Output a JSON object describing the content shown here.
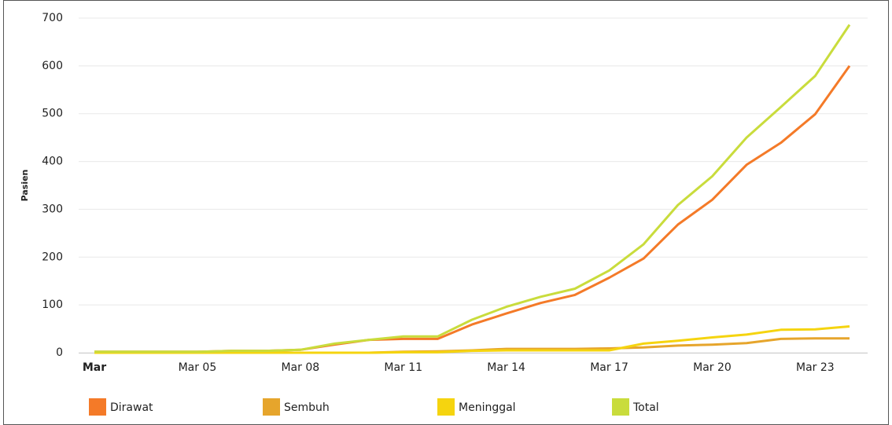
{
  "chart_data": {
    "type": "line",
    "y_label": "Pasien",
    "categories": [
      "Mar",
      null,
      null,
      "Mar 05",
      null,
      null,
      "Mar 08",
      null,
      null,
      "Mar 11",
      null,
      null,
      "Mar 14",
      null,
      null,
      "Mar 17",
      null,
      null,
      "Mar 20",
      null,
      null,
      "Mar 23",
      null
    ],
    "series": [
      {
        "name": "Dirawat",
        "color": "#f47a28",
        "values": [
          2,
          2,
          2,
          2,
          4,
          4,
          6,
          17,
          27,
          29,
          29,
          59,
          82,
          104,
          121,
          157,
          197,
          268,
          320,
          393,
          439,
          499,
          600
        ]
      },
      {
        "name": "Sembuh",
        "color": "#e6a52c",
        "values": [
          0,
          0,
          0,
          0,
          0,
          0,
          0,
          0,
          0,
          2,
          3,
          5,
          8,
          8,
          8,
          9,
          11,
          15,
          17,
          20,
          29,
          30,
          30
        ]
      },
      {
        "name": "Meninggal",
        "color": "#f5d40f",
        "values": [
          0,
          0,
          0,
          0,
          0,
          0,
          0,
          0,
          0,
          1,
          1,
          4,
          5,
          5,
          5,
          5,
          19,
          25,
          32,
          38,
          48,
          49,
          55
        ]
      },
      {
        "name": "Total",
        "color": "#c9dc3c",
        "values": [
          2,
          2,
          2,
          2,
          4,
          4,
          6,
          19,
          27,
          34,
          34,
          69,
          96,
          117,
          134,
          172,
          227,
          309,
          369,
          450,
          514,
          579,
          686
        ]
      }
    ],
    "ylim": [
      0,
      700
    ],
    "yticks": [
      0,
      100,
      200,
      300,
      400,
      500,
      600,
      700
    ],
    "grid": true
  }
}
